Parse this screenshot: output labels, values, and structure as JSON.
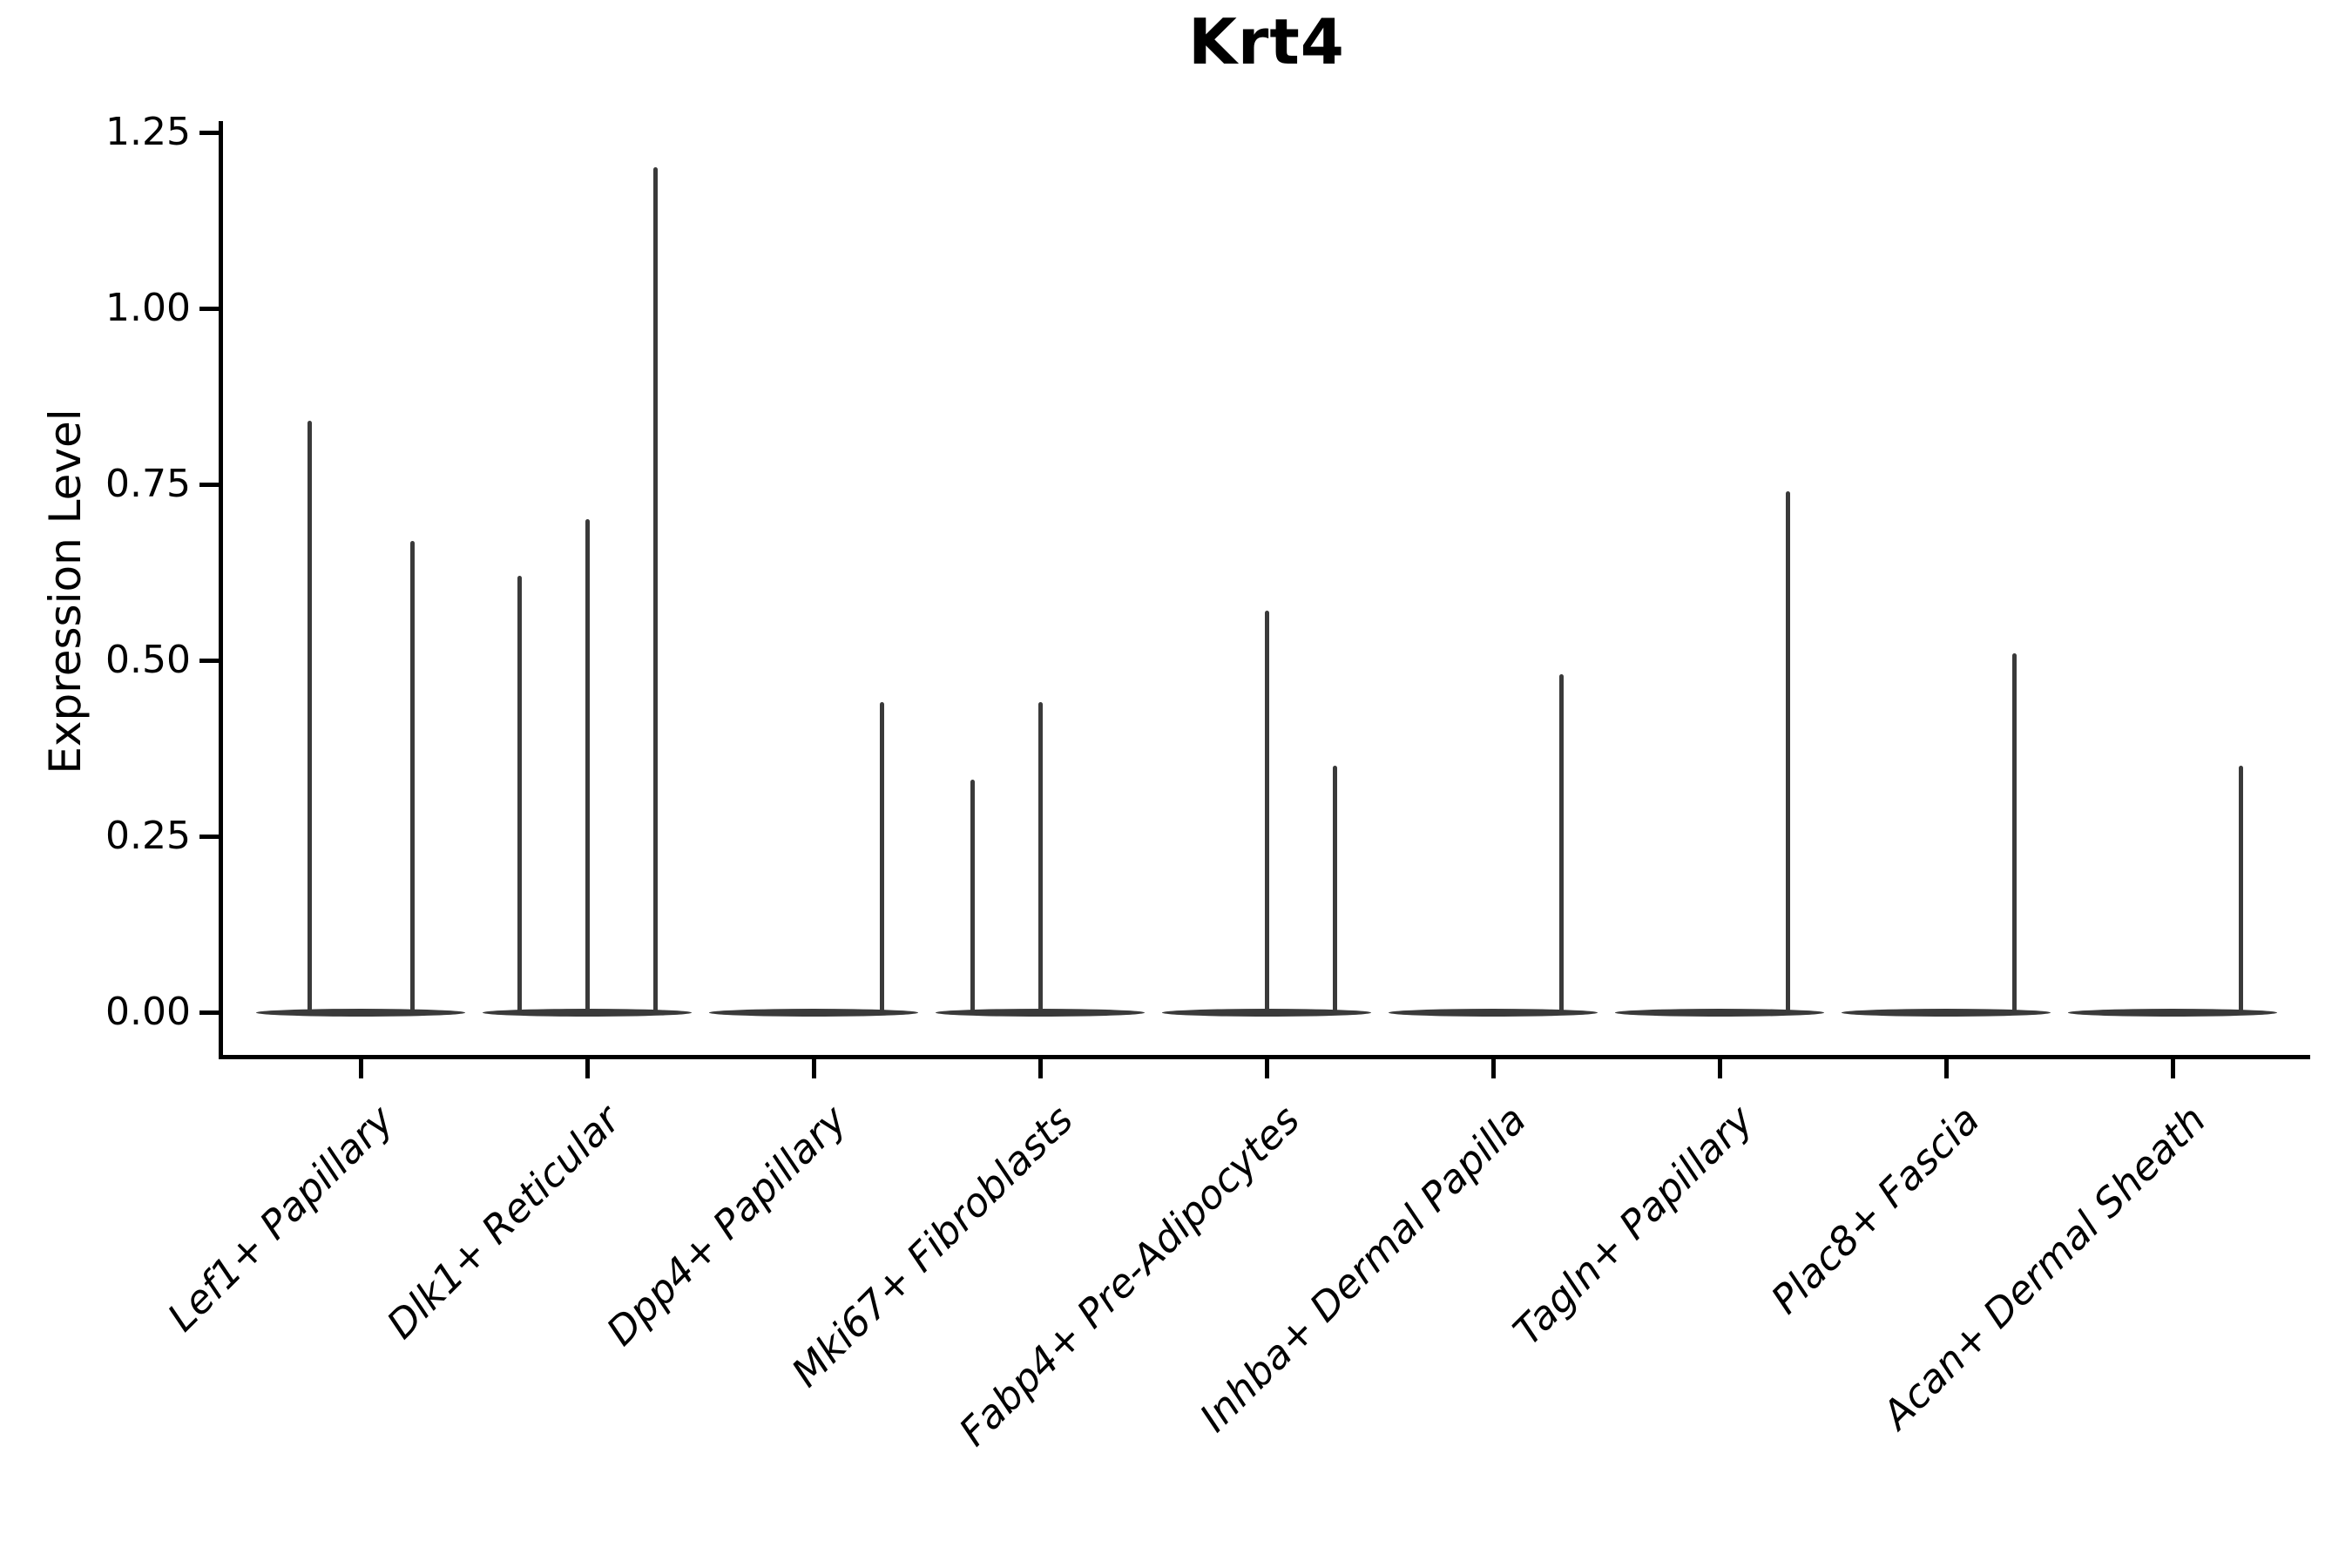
{
  "title": "Krt4",
  "y_axis": {
    "label": "Expression Level",
    "tick_labels": [
      "0.00",
      "0.25",
      "0.50",
      "0.75",
      "1.00",
      "1.25"
    ]
  },
  "chart_data": {
    "type": "violin",
    "title": "Krt4",
    "xlabel": "",
    "ylabel": "Expression Level",
    "ylim": [
      -0.06,
      1.27
    ],
    "yticks": [
      0.0,
      0.25,
      0.5,
      0.75,
      1.0,
      1.25
    ],
    "grid": false,
    "legend": false,
    "description": "Collapsed single-cell violin plot: each cell type shows a flat violin body at expression 0 with thin vertical density spikes rising to the maximum expression values",
    "categories": [
      "Lef1+ Papillary",
      "Dlk1+ Reticular",
      "Dpp4+ Papillary",
      "Mki67+ Fibroblasts",
      "Fabp4+ Pre-Adipocytes",
      "Inhba+ Dermal Papilla",
      "Tagln+ Papillary",
      "Plac8+ Fascia",
      "Acan+ Dermal Sheath"
    ],
    "series": [
      {
        "category": "Lef1+ Papillary",
        "baseline_value": 0.0,
        "spikes": [
          {
            "offset": -0.227,
            "value": 0.84
          },
          {
            "offset": 0.227,
            "value": 0.67
          }
        ]
      },
      {
        "category": "Dlk1+ Reticular",
        "baseline_value": 0.0,
        "spikes": [
          {
            "offset": -0.3,
            "value": 0.62
          },
          {
            "offset": 0.0,
            "value": 0.7
          },
          {
            "offset": 0.3,
            "value": 1.2
          }
        ]
      },
      {
        "category": "Dpp4+ Papillary",
        "baseline_value": 0.0,
        "spikes": [
          {
            "offset": 0.3,
            "value": 0.44
          }
        ]
      },
      {
        "category": "Mki67+ Fibroblasts",
        "baseline_value": 0.0,
        "spikes": [
          {
            "offset": -0.3,
            "value": 0.33
          },
          {
            "offset": 0.0,
            "value": 0.44
          }
        ]
      },
      {
        "category": "Fabp4+ Pre-Adipocytes",
        "baseline_value": 0.0,
        "spikes": [
          {
            "offset": 0.0,
            "value": 0.57
          },
          {
            "offset": 0.3,
            "value": 0.35
          }
        ]
      },
      {
        "category": "Inhba+ Dermal Papilla",
        "baseline_value": 0.0,
        "spikes": [
          {
            "offset": 0.3,
            "value": 0.48
          }
        ]
      },
      {
        "category": "Tagln+ Papillary",
        "baseline_value": 0.0,
        "spikes": [
          {
            "offset": 0.3,
            "value": 0.74
          }
        ]
      },
      {
        "category": "Plac8+ Fascia",
        "baseline_value": 0.0,
        "spikes": [
          {
            "offset": 0.3,
            "value": 0.51
          }
        ]
      },
      {
        "category": "Acan+ Dermal Sheath",
        "baseline_value": 0.0,
        "spikes": [
          {
            "offset": 0.3,
            "value": 0.35
          }
        ]
      }
    ],
    "colors": {
      "violin": "#3a3a3a",
      "axis": "#000000",
      "background": "#ffffff"
    }
  }
}
